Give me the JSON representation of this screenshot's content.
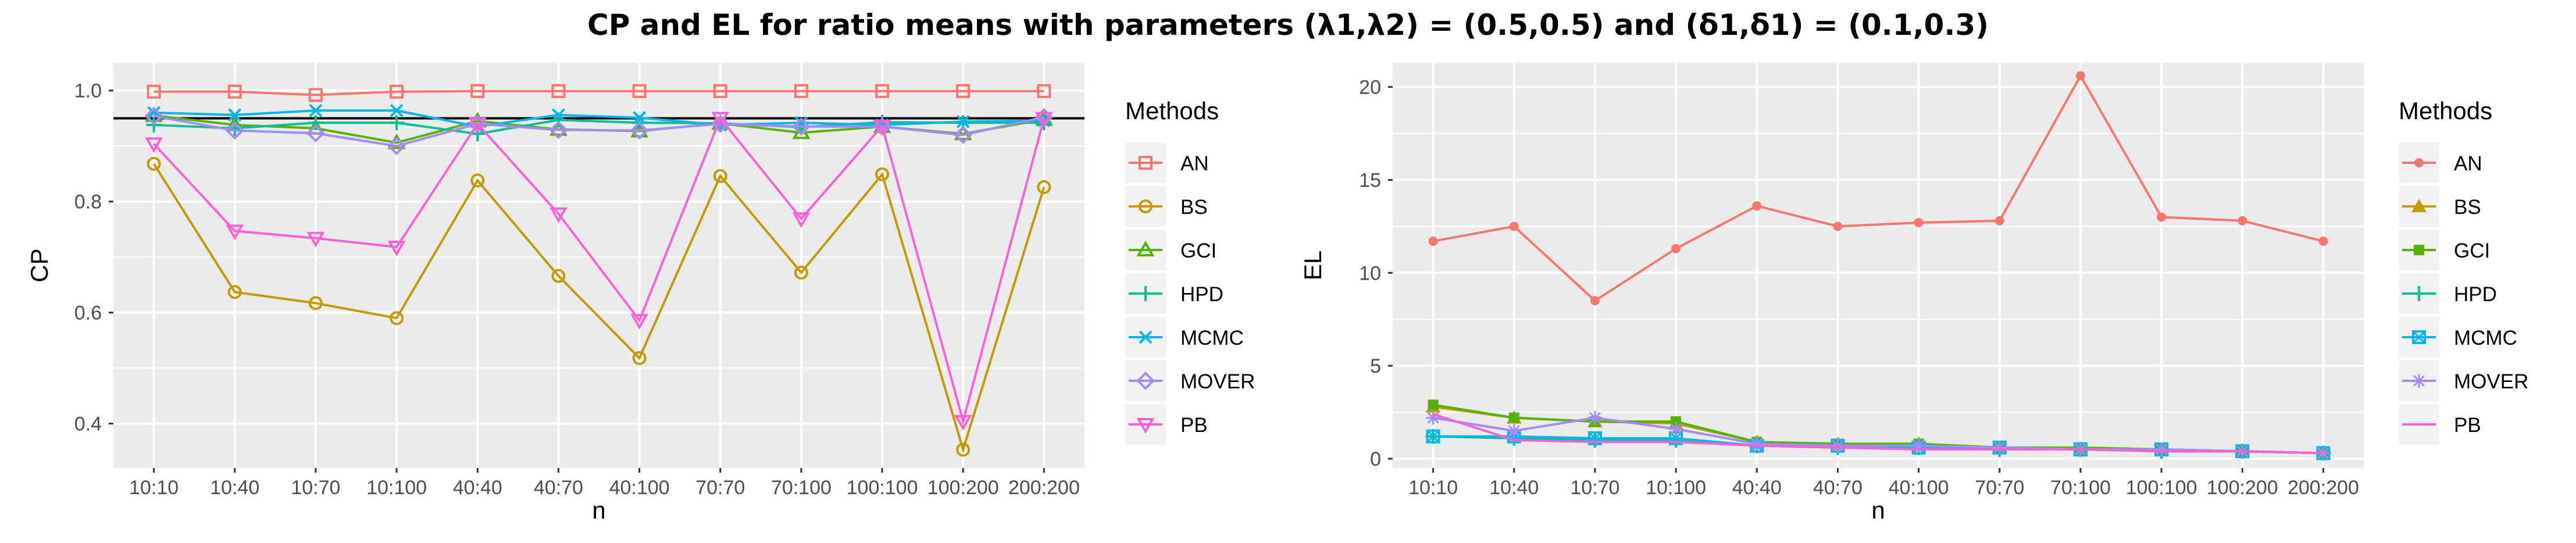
{
  "title": "CP and EL for ratio means with parameters (λ1,λ2) = (0.5,0.5) and (δ1,δ1) = (0.1,0.3)",
  "colors": {
    "AN": "#F8766D",
    "BS": "#C49A00",
    "GCI": "#53B400",
    "HPD": "#00C094",
    "MCMC": "#00B6EB",
    "MOVER": "#A58AFF",
    "PB": "#FB61D7",
    "panel_bg": "#EBEBEB",
    "grid": "#FFFFFF",
    "refline": "#000000"
  },
  "chart_data": [
    {
      "type": "line",
      "xlabel": "n",
      "ylabel": "CP",
      "categories": [
        "10:10",
        "10:40",
        "10:70",
        "10:100",
        "40:40",
        "40:70",
        "40:100",
        "70:70",
        "70:100",
        "100:100",
        "100:200",
        "200:200"
      ],
      "ylim": [
        0.32,
        1.05
      ],
      "yticks": [
        0.4,
        0.6,
        0.8,
        1.0
      ],
      "ytick_labels": [
        "0.4",
        "0.6",
        "0.8",
        "1.0"
      ],
      "hline": 0.95,
      "grid": true,
      "legend": {
        "title": "Methods",
        "position": "right"
      },
      "series": [
        {
          "name": "AN",
          "marker": "square",
          "values": [
            0.998,
            0.998,
            0.992,
            0.998,
            0.999,
            0.999,
            0.999,
            0.999,
            0.999,
            0.999,
            0.999,
            0.999
          ]
        },
        {
          "name": "BS",
          "marker": "circle",
          "values": [
            0.868,
            0.637,
            0.617,
            0.59,
            0.838,
            0.666,
            0.518,
            0.846,
            0.672,
            0.849,
            0.353,
            0.826
          ]
        },
        {
          "name": "GCI",
          "marker": "triangle",
          "values": [
            0.955,
            0.938,
            0.932,
            0.906,
            0.945,
            0.93,
            0.927,
            0.941,
            0.924,
            0.935,
            0.922,
            0.948
          ]
        },
        {
          "name": "HPD",
          "marker": "plus",
          "values": [
            0.938,
            0.932,
            0.942,
            0.942,
            0.922,
            0.947,
            0.942,
            0.941,
            0.934,
            0.943,
            0.942,
            0.942
          ]
        },
        {
          "name": "MCMC",
          "marker": "cross",
          "values": [
            0.96,
            0.956,
            0.964,
            0.964,
            0.935,
            0.956,
            0.951,
            0.938,
            0.942,
            0.938,
            0.944,
            0.946
          ]
        },
        {
          "name": "MOVER",
          "marker": "diamond",
          "values": [
            0.954,
            0.928,
            0.923,
            0.9,
            0.94,
            0.929,
            0.928,
            0.94,
            0.935,
            0.935,
            0.92,
            0.952
          ]
        },
        {
          "name": "PB",
          "marker": "triangle-down",
          "values": [
            0.904,
            0.747,
            0.734,
            0.718,
            0.94,
            0.778,
            0.586,
            0.95,
            0.769,
            0.936,
            0.404,
            0.95
          ]
        }
      ]
    },
    {
      "type": "line",
      "xlabel": "n",
      "ylabel": "EL",
      "categories": [
        "10:10",
        "10:40",
        "10:70",
        "10:100",
        "40:40",
        "40:70",
        "40:100",
        "70:70",
        "70:100",
        "100:100",
        "100:200",
        "200:200"
      ],
      "ylim": [
        -0.5,
        21.3
      ],
      "yticks": [
        0,
        5,
        10,
        15,
        20
      ],
      "ytick_labels": [
        "0",
        "5",
        "10",
        "15",
        "20"
      ],
      "grid": true,
      "legend": {
        "title": "Methods",
        "position": "right"
      },
      "series": [
        {
          "name": "AN",
          "marker": "circle",
          "values": [
            11.7,
            12.5,
            8.5,
            11.3,
            13.6,
            12.5,
            12.7,
            12.8,
            20.6,
            13.0,
            12.8,
            11.7
          ]
        },
        {
          "name": "BS",
          "marker": "triangle",
          "values": [
            2.8,
            2.2,
            2.0,
            1.9,
            0.9,
            0.8,
            0.8,
            0.6,
            0.5,
            0.5,
            0.4,
            0.3
          ]
        },
        {
          "name": "GCI",
          "marker": "square",
          "values": [
            2.9,
            2.2,
            2.0,
            2.0,
            0.9,
            0.8,
            0.8,
            0.6,
            0.6,
            0.5,
            0.4,
            0.3
          ]
        },
        {
          "name": "HPD",
          "marker": "plus",
          "values": [
            1.2,
            1.1,
            1.0,
            1.0,
            0.7,
            0.6,
            0.6,
            0.5,
            0.5,
            0.4,
            0.4,
            0.3
          ]
        },
        {
          "name": "MCMC",
          "marker": "square-cross",
          "values": [
            1.2,
            1.2,
            1.1,
            1.1,
            0.7,
            0.7,
            0.6,
            0.6,
            0.5,
            0.5,
            0.4,
            0.3
          ]
        },
        {
          "name": "MOVER",
          "marker": "asterisk",
          "values": [
            2.2,
            1.5,
            2.2,
            1.6,
            0.8,
            0.7,
            0.7,
            0.6,
            0.5,
            0.5,
            0.4,
            0.3
          ]
        },
        {
          "name": "PB",
          "marker": "none",
          "values": [
            2.4,
            1.0,
            0.9,
            0.9,
            0.7,
            0.6,
            0.5,
            0.5,
            0.5,
            0.4,
            0.4,
            0.3
          ]
        }
      ]
    }
  ]
}
